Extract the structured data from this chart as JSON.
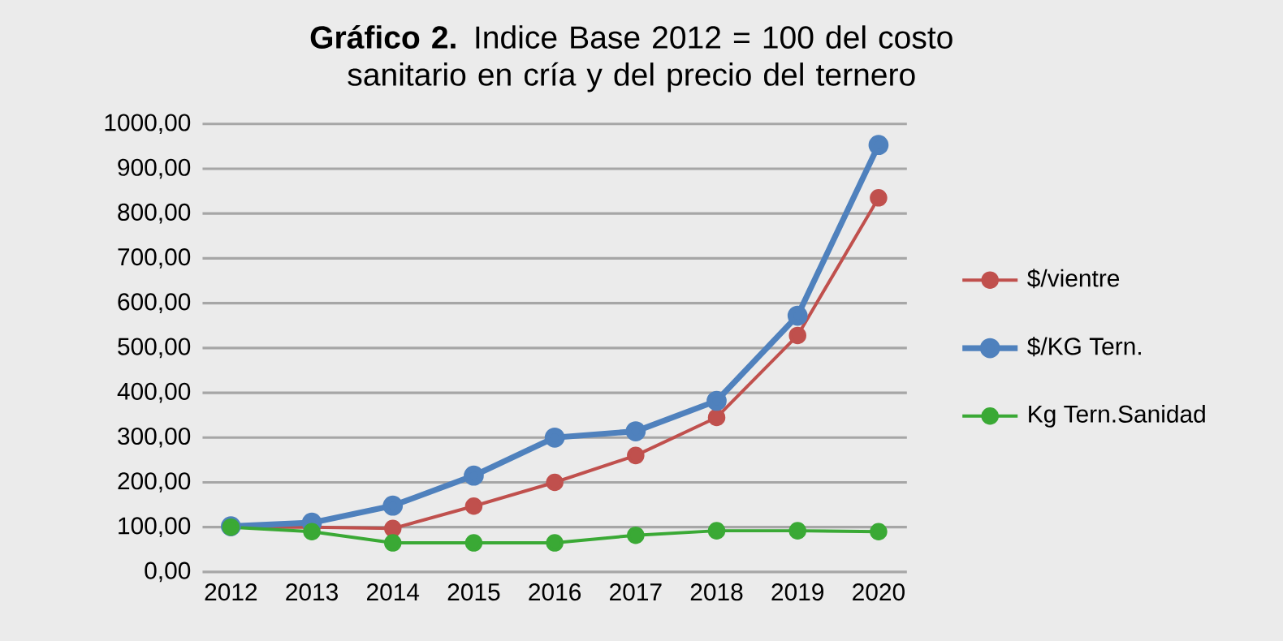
{
  "chart_data": {
    "type": "line",
    "title": "**Gráfico 2.** Indice Base 2012 = 100 del costo sanitario en cría y del precio del ternero",
    "categories": [
      "2012",
      "2013",
      "2014",
      "2015",
      "2016",
      "2017",
      "2018",
      "2019",
      "2020"
    ],
    "series": [
      {
        "name": "$/vientre",
        "color": "#c0504d",
        "values": [
          100,
          100,
          97,
          147,
          200,
          260,
          345,
          528,
          835
        ]
      },
      {
        "name": "$/KG Tern.",
        "color": "#4f81bd",
        "values": [
          102,
          110,
          148,
          215,
          300,
          314,
          382,
          572,
          953
        ]
      },
      {
        "name": "Kg Tern.Sanidad",
        "color": "#3aa935",
        "values": [
          100,
          90,
          65,
          65,
          65,
          82,
          92,
          92,
          90
        ]
      }
    ],
    "ylim": [
      0,
      1000
    ],
    "yticks": [
      {
        "value": 0,
        "label": "0,00"
      },
      {
        "value": 100,
        "label": "100,00"
      },
      {
        "value": 200,
        "label": "200,00"
      },
      {
        "value": 300,
        "label": "300,00"
      },
      {
        "value": 400,
        "label": "400,00"
      },
      {
        "value": 500,
        "label": "500,00"
      },
      {
        "value": 600,
        "label": "600,00"
      },
      {
        "value": 700,
        "label": "700,00"
      },
      {
        "value": 800,
        "label": "800,00"
      },
      {
        "value": 900,
        "label": "900,00"
      },
      {
        "value": 1000,
        "label": "1000,00"
      }
    ],
    "grid": "y",
    "legend": "right",
    "marker": "circle",
    "line_style": "solid"
  }
}
